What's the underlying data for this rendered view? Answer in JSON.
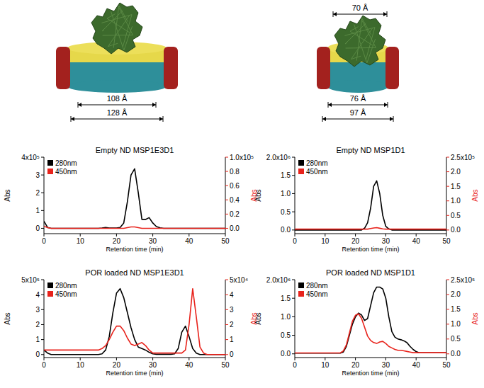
{
  "diagrams": [
    {
      "dimensions": [
        "108 Å",
        "128 Å"
      ]
    },
    {
      "dimensions": [
        "70 Å",
        "76 Å",
        "97 Å"
      ]
    }
  ],
  "chart_data": [
    {
      "type": "line",
      "title": "Empty ND MSP1E3D1",
      "x_label": "Retention time (min)",
      "y_label": "Abs",
      "y2_label": "Abs",
      "x": [
        0,
        1,
        2,
        3,
        4,
        5,
        6,
        7,
        8,
        9,
        10,
        11,
        12,
        13,
        14,
        15,
        16,
        17,
        18,
        19,
        20,
        21,
        22,
        23,
        24,
        25,
        26,
        27,
        28,
        29,
        30,
        31,
        32,
        33,
        34,
        35,
        36,
        37,
        38,
        39,
        40,
        41,
        42,
        43,
        44,
        45,
        46,
        47,
        48,
        49,
        50
      ],
      "xlim": [
        0,
        50
      ],
      "xticks": [
        0,
        10,
        20,
        30,
        40,
        50
      ],
      "ylim": [
        -0.3,
        4
      ],
      "yticks": [
        0,
        1,
        2,
        3,
        {
          "value": 4,
          "label": "4x10⁵"
        }
      ],
      "y2lim": [
        -0.075,
        1
      ],
      "y2ticks": [
        {
          "value": 0,
          "label": "0.0"
        },
        0.2,
        0.4,
        0.6,
        0.8,
        {
          "value": 1,
          "label": "1.0x10⁵"
        }
      ],
      "legend": "top-left",
      "series": [
        {
          "name": "280nm",
          "color": "#000000",
          "values": [
            0.4,
            0.05,
            0,
            0,
            0,
            0,
            0,
            0,
            0,
            0,
            0,
            0,
            0,
            0,
            0,
            0,
            0.02,
            0.05,
            0.02,
            0.02,
            0.02,
            0.05,
            0.3,
            1.5,
            3.0,
            3.35,
            2.0,
            0.5,
            0.5,
            0.6,
            0.3,
            0.1,
            0.03,
            0,
            0,
            0,
            0,
            0,
            0,
            0,
            0,
            0,
            0,
            0,
            0,
            0,
            0,
            0,
            0,
            0,
            0
          ]
        },
        {
          "name": "450nm",
          "color": "#e8231c",
          "axis": "y2",
          "values": [
            0.03,
            0.01,
            0,
            0,
            0,
            0,
            0,
            0,
            0,
            0,
            0,
            0,
            0,
            0,
            0,
            0,
            0,
            0,
            0,
            0,
            0,
            0,
            0,
            0.01,
            0.02,
            0.02,
            0.01,
            0,
            0,
            0,
            0,
            0,
            0,
            0,
            0,
            0,
            0,
            0,
            0,
            0,
            0,
            0,
            0,
            0,
            0,
            0,
            0,
            0,
            0,
            0,
            0
          ]
        }
      ]
    },
    {
      "type": "line",
      "title": "Empty ND MSP1D1",
      "x_label": "Retention time (min)",
      "y_label": "Abs",
      "y2_label": "Abs",
      "x": [
        0,
        1,
        2,
        3,
        4,
        5,
        6,
        7,
        8,
        9,
        10,
        11,
        12,
        13,
        14,
        15,
        16,
        17,
        18,
        19,
        20,
        21,
        22,
        23,
        24,
        25,
        26,
        27,
        28,
        29,
        30,
        31,
        32,
        33,
        34,
        35,
        36,
        37,
        38,
        39,
        40,
        41,
        42,
        43,
        44,
        45,
        46,
        47,
        48,
        49,
        50
      ],
      "xlim": [
        0,
        50
      ],
      "xticks": [
        0,
        10,
        20,
        30,
        40,
        50
      ],
      "ylim": [
        -0.1,
        2
      ],
      "yticks": [
        {
          "value": 0,
          "label": "0.0"
        },
        0.5,
        {
          "value": 1,
          "label": "1.0"
        },
        1.5,
        {
          "value": 2,
          "label": "2.0x10⁶"
        }
      ],
      "y2lim": [
        -0.125,
        2.5
      ],
      "y2ticks": [
        {
          "value": 0,
          "label": "0.0"
        },
        0.5,
        {
          "value": 1,
          "label": "1.0"
        },
        1.5,
        {
          "value": 2,
          "label": "2.0"
        },
        {
          "value": 2.5,
          "label": "2.5x10⁵"
        }
      ],
      "legend": "top-left",
      "series": [
        {
          "name": "280nm",
          "color": "#000000",
          "values": [
            0,
            0,
            0,
            0,
            0,
            0,
            0,
            0,
            0,
            0,
            0,
            0,
            0,
            0,
            0,
            0,
            0,
            0,
            0,
            0,
            0,
            0,
            0,
            0.05,
            0.2,
            0.6,
            1.2,
            1.35,
            1.0,
            0.4,
            0.1,
            0.03,
            0,
            0,
            0,
            0,
            0,
            0,
            0,
            0,
            0,
            0,
            0,
            0,
            0,
            0,
            0,
            0,
            0,
            0,
            0
          ]
        },
        {
          "name": "450nm",
          "color": "#e8231c",
          "axis": "y2",
          "values": [
            0.03,
            0.03,
            0.03,
            0.03,
            0.03,
            0.03,
            0.03,
            0.03,
            0.03,
            0.03,
            0.03,
            0.03,
            0.03,
            0.03,
            0.03,
            0.03,
            0.03,
            0.03,
            0.03,
            0.03,
            0.03,
            0.03,
            0.03,
            0.03,
            0.03,
            0.05,
            0.07,
            0.08,
            0.06,
            0.04,
            0.03,
            0.03,
            0.03,
            0.03,
            0.03,
            0.03,
            0.03,
            0.03,
            0.03,
            0.03,
            0.03,
            0.03,
            0.03,
            0.03,
            0.03,
            0.03,
            0.03,
            0.03,
            0.03,
            0.03,
            0.03
          ]
        }
      ]
    },
    {
      "type": "line",
      "title": "POR loaded ND MSP1E3D1",
      "x_label": "Retention time (min)",
      "y_label": "Abs",
      "y2_label": "Abs",
      "x": [
        0,
        1,
        2,
        3,
        4,
        5,
        6,
        7,
        8,
        9,
        10,
        11,
        12,
        13,
        14,
        15,
        16,
        17,
        18,
        19,
        20,
        21,
        22,
        23,
        24,
        25,
        26,
        27,
        28,
        29,
        30,
        31,
        32,
        33,
        34,
        35,
        36,
        37,
        38,
        39,
        40,
        41,
        42,
        43,
        44,
        45,
        46,
        47,
        48,
        49,
        50
      ],
      "xlim": [
        0,
        50
      ],
      "xticks": [
        0,
        10,
        20,
        30,
        40,
        50
      ],
      "ylim": [
        -0.2,
        5
      ],
      "yticks": [
        0,
        1,
        2,
        3,
        4,
        {
          "value": 5,
          "label": "5x10⁵"
        }
      ],
      "y2lim": [
        -0.2,
        5
      ],
      "y2ticks": [
        0,
        1,
        2,
        3,
        4,
        {
          "value": 5,
          "label": "5x10⁴"
        }
      ],
      "legend": "top-left",
      "series": [
        {
          "name": "280nm",
          "color": "#000000",
          "values": [
            0.3,
            0.1,
            0,
            0,
            0,
            0,
            0,
            0,
            0,
            0,
            0,
            0,
            0,
            0,
            0,
            0,
            0.05,
            0.3,
            1.2,
            2.8,
            4.1,
            4.4,
            3.8,
            2.8,
            1.8,
            1.0,
            0.5,
            0.4,
            0.3,
            0.15,
            0.05,
            0.02,
            0.02,
            0.02,
            0.02,
            0.02,
            0.05,
            0.4,
            1.5,
            1.9,
            1.2,
            0.4,
            0.1,
            0,
            0,
            0,
            0,
            0,
            0,
            0,
            0
          ]
        },
        {
          "name": "450nm",
          "color": "#e8231c",
          "axis": "y2",
          "values": [
            0.3,
            0.3,
            0.3,
            0.3,
            0.3,
            0.3,
            0.3,
            0.3,
            0.3,
            0.3,
            0.3,
            0.3,
            0.3,
            0.3,
            0.3,
            0.3,
            0.4,
            0.6,
            1.0,
            1.5,
            1.9,
            1.9,
            1.6,
            1.1,
            0.7,
            0.6,
            0.7,
            0.8,
            0.6,
            0.3,
            0.1,
            0.1,
            0.1,
            0.1,
            0.1,
            0.1,
            0.1,
            0.1,
            0.1,
            0.3,
            2.0,
            4.4,
            2.5,
            0.5,
            0.1,
            0,
            0,
            0,
            0,
            0,
            0
          ]
        }
      ]
    },
    {
      "type": "line",
      "title": "POR loaded ND MSP1D1",
      "x_label": "Retention time (min)",
      "y_label": "Abs",
      "y2_label": "Abs",
      "x": [
        0,
        1,
        2,
        3,
        4,
        5,
        6,
        7,
        8,
        9,
        10,
        11,
        12,
        13,
        14,
        15,
        16,
        17,
        18,
        19,
        20,
        21,
        22,
        23,
        24,
        25,
        26,
        27,
        28,
        29,
        30,
        31,
        32,
        33,
        34,
        35,
        36,
        37,
        38,
        39,
        40,
        41,
        42,
        43,
        44,
        45,
        46,
        47,
        48,
        49,
        50
      ],
      "xlim": [
        0,
        50
      ],
      "xticks": [
        0,
        10,
        20,
        30,
        40,
        50
      ],
      "ylim": [
        -0.1,
        2
      ],
      "yticks": [
        {
          "value": 0,
          "label": "0.0"
        },
        0.5,
        {
          "value": 1,
          "label": "1.0"
        },
        1.5,
        {
          "value": 2,
          "label": "2.0x10⁶"
        }
      ],
      "y2lim": [
        -0.125,
        2.5
      ],
      "y2ticks": [
        {
          "value": 0,
          "label": "0.0"
        },
        0.5,
        {
          "value": 1,
          "label": "1.0"
        },
        1.5,
        {
          "value": 2,
          "label": "2.0"
        },
        {
          "value": 2.5,
          "label": "2.5x10⁵"
        }
      ],
      "legend": "top-left",
      "series": [
        {
          "name": "280nm",
          "color": "#000000",
          "values": [
            0.02,
            0.02,
            0.02,
            0.02,
            0.02,
            0.02,
            0.02,
            0.02,
            0.02,
            0.02,
            0.02,
            0.02,
            0.02,
            0.02,
            0.02,
            0.02,
            0.05,
            0.2,
            0.5,
            0.8,
            1.0,
            1.1,
            1.05,
            0.9,
            0.95,
            1.3,
            1.65,
            1.8,
            1.8,
            1.75,
            1.5,
            1.0,
            0.6,
            0.45,
            0.4,
            0.38,
            0.35,
            0.3,
            0.2,
            0.12,
            0.06,
            0.03,
            0.03,
            0.03,
            0.03,
            0.03,
            0.03,
            0.03,
            0.03,
            0.03,
            0.03
          ]
        },
        {
          "name": "450nm",
          "color": "#e8231c",
          "axis": "y2",
          "values": [
            0.03,
            0.03,
            0.03,
            0.03,
            0.03,
            0.03,
            0.03,
            0.03,
            0.03,
            0.03,
            0.03,
            0.03,
            0.03,
            0.03,
            0.03,
            0.03,
            0.1,
            0.3,
            0.7,
            1.1,
            1.3,
            1.35,
            1.2,
            0.9,
            0.6,
            0.45,
            0.38,
            0.35,
            0.4,
            0.42,
            0.35,
            0.25,
            0.2,
            0.15,
            0.12,
            0.12,
            0.1,
            0.08,
            0.06,
            0.04,
            0.04,
            0.04,
            0.04,
            0.04,
            0.04,
            0.04,
            0.04,
            0.04,
            0.04,
            0.04,
            0.04
          ]
        }
      ]
    }
  ]
}
